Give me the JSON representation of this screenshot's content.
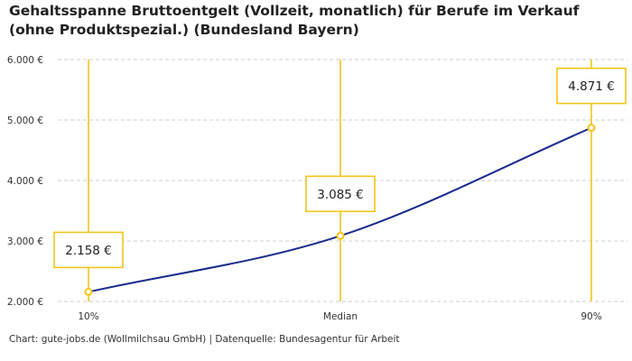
{
  "title": "Gehaltsspanne Bruttoentgelt (Vollzeit, monatlich) für Berufe im Verkauf (ohne Produktspezial.) (Bundesland Bayern)",
  "source": "Chart: gute-jobs.de (Wollmilchsau GmbH) | Datenquelle: Bundesagentur für Arbeit",
  "colors": {
    "line": "#1a2b8c",
    "accent": "#f5c518",
    "grid": "#cfcfcf"
  },
  "chart_data": {
    "type": "line",
    "title": "Gehaltsspanne Bruttoentgelt (Vollzeit, monatlich) für Berufe im Verkauf (ohne Produktspezial.) (Bundesland Bayern)",
    "categories": [
      "10%",
      "Median",
      "90%"
    ],
    "values": [
      2158,
      3085,
      4871
    ],
    "value_labels": [
      "2.158 €",
      "3.085 €",
      "4.871 €"
    ],
    "y_ticks": [
      2000,
      3000,
      4000,
      5000,
      6000
    ],
    "y_tick_labels": [
      "2.000 €",
      "3.000 €",
      "4.000 €",
      "5.000 €",
      "6.000 €"
    ],
    "ylim": [
      2000,
      6000
    ],
    "grid": true,
    "xlabel": "",
    "ylabel": ""
  }
}
